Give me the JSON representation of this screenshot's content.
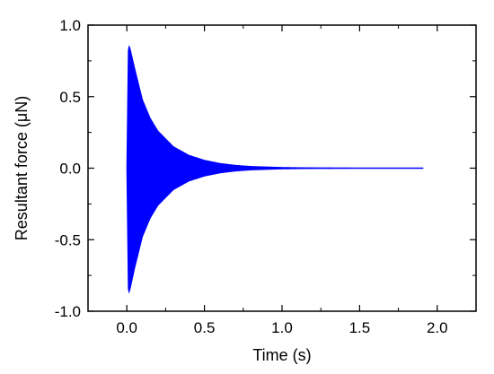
{
  "chart_data": {
    "type": "line",
    "title": "",
    "xlabel": "Time (s)",
    "ylabel": "Resultant force (μN)",
    "xlim": [
      -0.25,
      2.25
    ],
    "ylim": [
      -1.0,
      1.0
    ],
    "x_ticks": [
      0.0,
      0.5,
      1.0,
      1.5,
      2.0
    ],
    "x_tick_labels": [
      "0.0",
      "0.5",
      "1.0",
      "1.5",
      "2.0"
    ],
    "y_ticks": [
      -1.0,
      -0.5,
      0.0,
      0.5,
      1.0
    ],
    "y_tick_labels": [
      "-1.0",
      "-0.5",
      "0.0",
      "0.5",
      "1.0"
    ],
    "grid": false,
    "legend": "none",
    "series": [
      {
        "color": "#0000ff",
        "description_points": {
          "t": [
            0.0,
            0.01,
            0.02,
            0.05,
            0.1,
            0.15,
            0.2,
            0.3,
            0.4,
            0.5,
            0.6,
            0.7,
            0.8,
            1.0,
            1.2,
            1.5,
            1.9
          ],
          "upper_envelope": [
            0.0,
            0.86,
            0.84,
            0.7,
            0.48,
            0.35,
            0.26,
            0.15,
            0.09,
            0.055,
            0.033,
            0.02,
            0.012,
            0.005,
            0.002,
            0.0,
            0.0
          ],
          "lower_envelope": [
            0.0,
            -0.88,
            -0.85,
            -0.7,
            -0.48,
            -0.35,
            -0.26,
            -0.15,
            -0.09,
            -0.055,
            -0.033,
            -0.02,
            -0.012,
            -0.005,
            -0.002,
            0.0,
            0.0
          ]
        },
        "peak": 0.87,
        "trough": -0.88,
        "t_start": 0.0,
        "t_end": 1.91
      }
    ]
  }
}
